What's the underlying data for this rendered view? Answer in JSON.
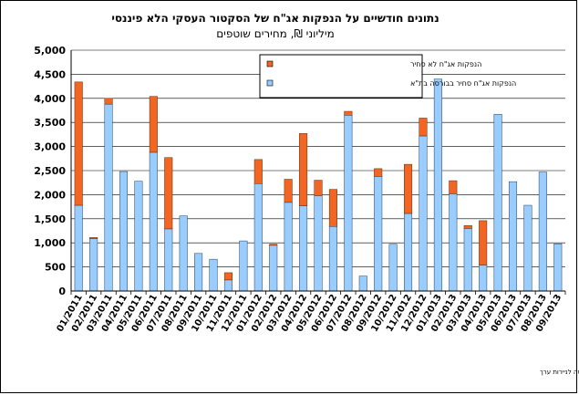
{
  "chart_data": {
    "type": "bar",
    "stacked": true,
    "title": "נתונים חודשיים על הנפקות אג\"ח של הסקטור העסקי הלא פיננסי",
    "subtitle": "מיליוני ₪, מחירים שוטפים",
    "source": "מקור נתוני אג\"ח סחיר - הבורסה לניירות ערך",
    "ylim": [
      0,
      5000
    ],
    "yticks": [
      0,
      500,
      1000,
      1500,
      2000,
      2500,
      3000,
      3500,
      4000,
      4500,
      5000
    ],
    "ytick_labels": [
      "0",
      "500",
      "1,000",
      "1,500",
      "2,000",
      "2,500",
      "3,000",
      "3,500",
      "4,000",
      "4,500",
      "5,000"
    ],
    "grid": true,
    "legend_position": "top-center",
    "categories": [
      "01/2011",
      "02/2011",
      "03/2011",
      "04/2011",
      "05/2011",
      "06/2011",
      "07/2011",
      "08/2011",
      "09/2011",
      "10/2011",
      "11/2011",
      "12/2011",
      "01/2012",
      "02/2012",
      "03/2012",
      "04/2012",
      "05/2012",
      "06/2012",
      "07/2012",
      "08/2012",
      "09/2012",
      "10/2012",
      "11/2012",
      "12/2012",
      "01/2013",
      "02/2013",
      "03/2013",
      "04/2013",
      "05/2013",
      "06/2013",
      "07/2013",
      "08/2013",
      "09/2013"
    ],
    "xtick_labels": [
      "01/2011",
      "02/2011",
      "03/2011",
      "04/2011",
      "05/2011",
      "06/2011",
      "07/2011",
      "08/2011",
      "09/2011",
      "10/2011",
      "11/2011",
      "12/2011",
      "01/2012",
      "02/2012",
      "03/2012",
      "04/2012",
      "05/2012",
      "06/2012",
      "07/2012",
      "08/2012",
      "09/2012",
      "10/2012",
      "11/2012",
      "12/2012",
      "01/2013",
      "02/2013",
      "03/2013",
      "04/2013",
      "05/2013",
      "06/2013",
      "07/2013",
      "08/2013",
      "09/2013"
    ],
    "series": [
      {
        "name": "הנפקות אג\"ח סחיר בבורסה בת\"א",
        "color": "#99ccff",
        "values": [
          1780,
          1090,
          3880,
          2480,
          2280,
          2880,
          1290,
          1560,
          780,
          660,
          230,
          1040,
          2230,
          950,
          1840,
          1770,
          1980,
          1340,
          3650,
          310,
          2380,
          970,
          1610,
          3220,
          4400,
          2020,
          1300,
          540,
          3670,
          2270,
          1780,
          2470,
          980
        ]
      },
      {
        "name": "הנפקות אג\"ח לא סחיר",
        "color": "#f26522",
        "values": [
          2560,
          20,
          120,
          0,
          0,
          1160,
          1480,
          0,
          0,
          0,
          150,
          0,
          500,
          20,
          480,
          1500,
          320,
          770,
          80,
          0,
          160,
          0,
          1020,
          370,
          0,
          270,
          60,
          920,
          0,
          0,
          0,
          0,
          0
        ]
      }
    ]
  }
}
